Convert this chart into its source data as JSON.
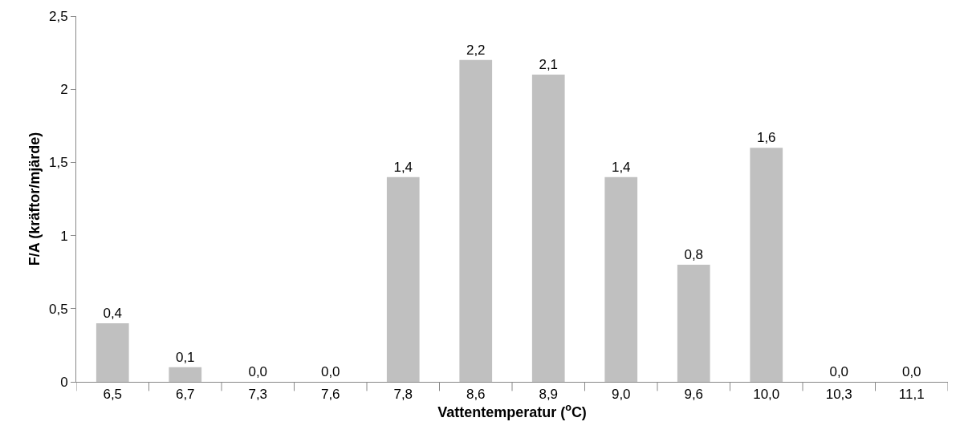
{
  "chart_data": {
    "type": "bar",
    "xlabel": "Vattentemperatur ($^{o}$C)",
    "ylabel": "F/A (kräftor/mjärde)",
    "categories": [
      "6,5",
      "6,7",
      "7,3",
      "7,6",
      "7,8",
      "8,6",
      "8,9",
      "9,0",
      "9,6",
      "10,0",
      "10,3",
      "11,1"
    ],
    "values": [
      0.4,
      0.1,
      0,
      0,
      1.4,
      2.2,
      2.1,
      1.4,
      0.8,
      1.6,
      0,
      0
    ],
    "value_labels": [
      "0,4",
      "0,1",
      "0,0",
      "0,0",
      "1,4",
      "2,2",
      "2,1",
      "1,4",
      "0,8",
      "1,6",
      "0,0",
      "0,0"
    ],
    "color": "#c0c0c0",
    "ylim": [
      0,
      2.5
    ],
    "yticks": [
      0,
      {
        "value": 0.5,
        "label": "0,5"
      },
      1,
      {
        "value": 1.5,
        "label": "1,5"
      },
      2,
      {
        "value": 2.5,
        "label": "2,5"
      }
    ],
    "grid": false,
    "legend": false
  }
}
